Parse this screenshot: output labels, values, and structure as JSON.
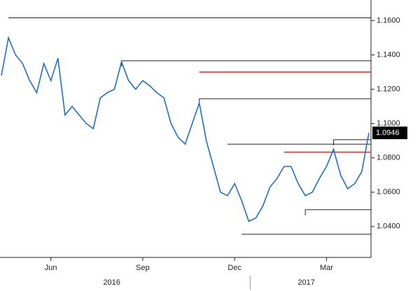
{
  "chart_data": {
    "type": "line",
    "categories": [
      null,
      null,
      null,
      null,
      null,
      null,
      null,
      "Jun",
      null,
      null,
      null,
      null,
      null,
      null,
      null,
      null,
      null,
      null,
      null,
      null,
      "Sep",
      null,
      null,
      null,
      null,
      null,
      null,
      null,
      null,
      null,
      null,
      null,
      null,
      "Dec",
      null,
      null,
      null,
      null,
      null,
      null,
      null,
      null,
      null,
      null,
      null,
      null,
      "Mar",
      null,
      null,
      null,
      null,
      null,
      null
    ],
    "years": [
      "2016",
      "2017"
    ],
    "series": [
      {
        "color": "#1f6fc4",
        "values": [
          1.128,
          1.15,
          1.14,
          1.135,
          1.125,
          1.118,
          1.135,
          1.125,
          1.138,
          1.105,
          1.11,
          1.105,
          1.1,
          1.097,
          1.115,
          1.118,
          1.12,
          1.136,
          1.125,
          1.12,
          1.125,
          1.122,
          1.118,
          1.115,
          1.1,
          1.092,
          1.088,
          1.1,
          1.112,
          1.09,
          1.075,
          1.06,
          1.058,
          1.065,
          1.055,
          1.043,
          1.045,
          1.052,
          1.063,
          1.068,
          1.075,
          1.075,
          1.065,
          1.058,
          1.06,
          1.068,
          1.075,
          1.085,
          1.07,
          1.062,
          1.065,
          1.072,
          1.0946
        ]
      }
    ],
    "levels": [
      {
        "value": 1.1616,
        "from": 1,
        "color": "#222222"
      },
      {
        "value": 1.1366,
        "from": 17,
        "color": "#222222"
      },
      {
        "value": 1.13,
        "from": 28,
        "color": "#e03030"
      },
      {
        "value": 1.1145,
        "from": 28,
        "color": "#222222"
      },
      {
        "value": 1.088,
        "from": 32,
        "color": "#222222"
      },
      {
        "value": 1.0906,
        "from": 47,
        "color": "#222222"
      },
      {
        "value": 1.0833,
        "from": 40,
        "color": "#e03030"
      },
      {
        "value": 1.0498,
        "from": 43,
        "color": "#222222"
      },
      {
        "value": 1.0355,
        "from": 34,
        "color": "#222222"
      }
    ],
    "ylim": [
      1.022,
      1.172
    ],
    "yticks": [
      {
        "value": 1.04,
        "label": "1.0400"
      },
      {
        "value": 1.06,
        "label": "1.0600"
      },
      {
        "value": 1.08,
        "label": "1.0800"
      },
      {
        "value": 1.1,
        "label": "1.1000"
      },
      {
        "value": 1.12,
        "label": "1.1200"
      },
      {
        "value": 1.14,
        "label": "1.1400"
      },
      {
        "value": 1.16,
        "label": "1.1600"
      }
    ]
  }
}
